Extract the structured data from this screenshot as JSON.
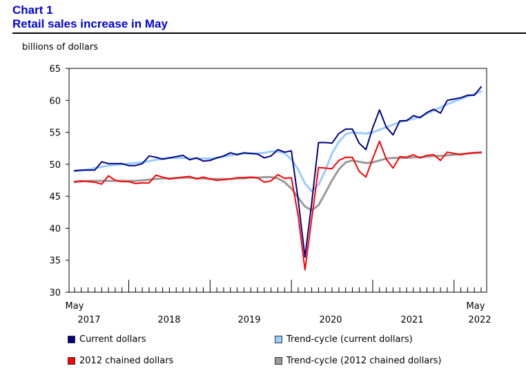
{
  "header": {
    "chart_number": "Chart 1",
    "title": "Retail sales increase in May"
  },
  "unit_label": "billions of dollars",
  "colors": {
    "current": "#000080",
    "trend_current": "#99ccff",
    "chained": "#ff0000",
    "trend_chained": "#999999"
  },
  "chart_data": {
    "type": "line",
    "ylabel": "billions of dollars",
    "xlabel": "",
    "ylim": [
      30,
      65
    ],
    "y_ticks": [
      30,
      35,
      40,
      45,
      50,
      55,
      60,
      65
    ],
    "x_start_label": "May",
    "x_end_label": "May",
    "year_labels": [
      "2017",
      "2018",
      "2019",
      "2020",
      "2021",
      "2022"
    ],
    "x_period": "May 2017 – May 2022 (monthly)",
    "grid": false,
    "legend_position": "bottom",
    "series": [
      {
        "name": "Current dollars",
        "values": [
          49.0,
          49.1,
          49.1,
          49.1,
          50.4,
          50.1,
          50.1,
          50.1,
          49.8,
          49.8,
          50.1,
          51.3,
          51.1,
          50.8,
          51.0,
          51.2,
          51.4,
          50.7,
          51.0,
          50.5,
          50.6,
          51.0,
          51.3,
          51.8,
          51.5,
          51.8,
          51.7,
          51.6,
          51.0,
          51.3,
          52.3,
          51.9,
          52.1,
          44.5,
          35.5,
          44.0,
          53.4,
          53.4,
          53.3,
          54.8,
          55.5,
          55.5,
          53.3,
          52.3,
          55.7,
          58.5,
          55.8,
          54.6,
          56.8,
          56.8,
          57.6,
          57.3,
          58.1,
          58.6,
          58.0,
          60.0,
          60.2,
          60.4,
          60.8,
          60.8,
          62.1
        ]
      },
      {
        "name": "Trend-cycle (current dollars)",
        "values": [
          48.9,
          49.0,
          49.2,
          49.4,
          49.6,
          49.8,
          49.9,
          50.0,
          50.1,
          50.2,
          50.3,
          50.5,
          50.7,
          50.9,
          51.0,
          51.0,
          51.0,
          50.9,
          50.9,
          50.9,
          50.9,
          51.0,
          51.2,
          51.4,
          51.6,
          51.7,
          51.7,
          51.7,
          51.8,
          52.0,
          52.0,
          51.7,
          50.8,
          49.2,
          47.0,
          45.8,
          46.8,
          49.0,
          51.7,
          53.5,
          54.7,
          55.0,
          54.9,
          54.8,
          55.0,
          55.4,
          55.8,
          56.2,
          56.6,
          56.9,
          57.1,
          57.4,
          57.9,
          58.4,
          58.9,
          59.4,
          59.8,
          60.2,
          60.6,
          61.0,
          61.4
        ]
      },
      {
        "name": "2012 chained dollars",
        "values": [
          47.3,
          47.4,
          47.3,
          47.2,
          46.9,
          48.2,
          47.5,
          47.3,
          47.3,
          47.0,
          47.1,
          47.1,
          48.3,
          48.0,
          47.7,
          47.8,
          48.0,
          48.1,
          47.7,
          48.0,
          47.7,
          47.5,
          47.6,
          47.7,
          47.9,
          47.9,
          48.0,
          47.9,
          47.2,
          47.4,
          48.4,
          47.8,
          47.9,
          42.0,
          33.5,
          41.5,
          49.5,
          49.4,
          49.3,
          50.6,
          51.1,
          51.1,
          48.9,
          48.0,
          50.9,
          53.6,
          50.8,
          49.4,
          51.2,
          51.1,
          51.5,
          51.0,
          51.4,
          51.5,
          50.6,
          51.9,
          51.7,
          51.5,
          51.7,
          51.8,
          51.9
        ]
      },
      {
        "name": "Trend-cycle (2012 chained dollars)",
        "values": [
          47.2,
          47.3,
          47.4,
          47.4,
          47.4,
          47.4,
          47.4,
          47.4,
          47.4,
          47.4,
          47.5,
          47.6,
          47.7,
          47.8,
          47.8,
          47.9,
          47.9,
          47.9,
          47.8,
          47.8,
          47.7,
          47.7,
          47.7,
          47.7,
          47.8,
          47.8,
          47.9,
          47.9,
          48.0,
          48.0,
          47.8,
          47.2,
          46.2,
          44.8,
          43.4,
          42.8,
          43.6,
          45.5,
          47.5,
          49.2,
          50.3,
          50.6,
          50.4,
          50.2,
          50.3,
          50.6,
          50.9,
          51.0,
          51.0,
          51.0,
          51.1,
          51.1,
          51.2,
          51.3,
          51.3,
          51.4,
          51.5,
          51.6,
          51.7,
          51.8,
          51.8
        ]
      }
    ]
  }
}
